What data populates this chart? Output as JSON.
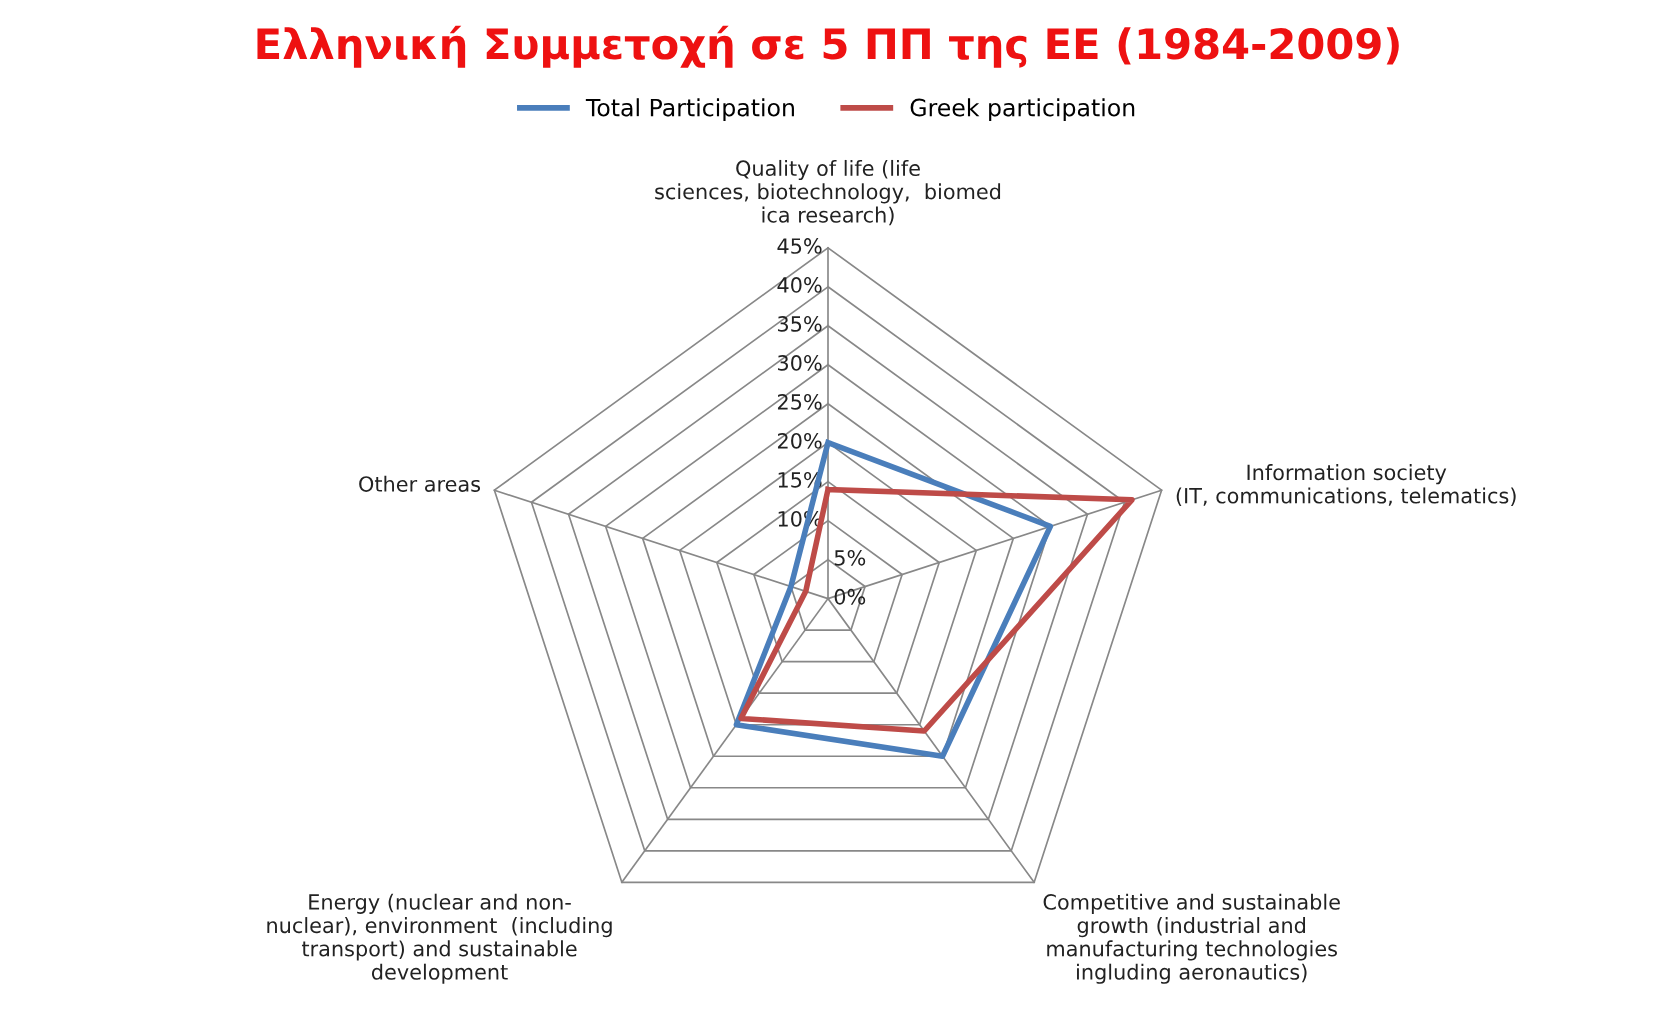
{
  "chart_data": {
    "type": "radar",
    "title": "Ελληνική Συμμετοχή σε 5 ΠΠ της ΕΕ (1984-2009)",
    "categories": [
      "Quality of life (life\nsciences, biotechnology,  biomed\nica research)",
      "Information society\n(IT, communications, telematics)",
      "Competitive and sustainable\ngrowth (industrial and\nmanufacturing technologies\ningluding aeronautics)",
      "Energy (nuclear and non-\nnuclear), environment  (including\ntransport) and sustainable\ndevelopment",
      "Other areas"
    ],
    "series": [
      {
        "name": "Total Participation",
        "color": "#4a7ebb",
        "values": [
          20,
          30,
          25,
          20,
          5
        ]
      },
      {
        "name": "Greek participation",
        "color": "#be4b48",
        "values": [
          14,
          41,
          21,
          19,
          3
        ]
      }
    ],
    "ylim": [
      0,
      45
    ],
    "yticks": [
      {
        "value": 0,
        "label": "0%"
      },
      {
        "value": 5,
        "label": "5%"
      },
      {
        "value": 10,
        "label": "10%"
      },
      {
        "value": 15,
        "label": "15%"
      },
      {
        "value": 20,
        "label": "20%"
      },
      {
        "value": 25,
        "label": "25%"
      },
      {
        "value": 30,
        "label": "30%"
      },
      {
        "value": 35,
        "label": "35%"
      },
      {
        "value": 40,
        "label": "40%"
      },
      {
        "value": 45,
        "label": "45%"
      }
    ],
    "legend": "top",
    "grid": true
  }
}
